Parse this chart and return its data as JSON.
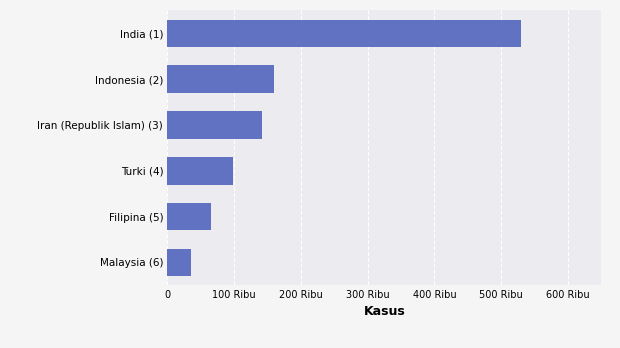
{
  "categories": [
    "Malaysia (6)",
    "Filipina (5)",
    "Turki (4)",
    "Iran (Republik Islam) (3)",
    "Indonesia (2)",
    "India (1)"
  ],
  "values": [
    36000,
    65000,
    98000,
    141000,
    160000,
    530000
  ],
  "bar_color": "#6272c3",
  "xlabel": "Kasus",
  "xlim": [
    0,
    650000
  ],
  "xticks": [
    0,
    100000,
    200000,
    300000,
    400000,
    500000,
    600000
  ],
  "xtick_labels": [
    "0",
    "100 Ribu",
    "200 Ribu",
    "300 Ribu",
    "400 Ribu",
    "500 Ribu",
    "600 Ribu"
  ],
  "background_color": "#f5f5f5",
  "plot_background_color": "#ebebf0",
  "grid_color": "#ffffff",
  "bar_height": 0.6,
  "xlabel_fontsize": 9,
  "tick_fontsize": 7,
  "label_fontsize": 7.5
}
